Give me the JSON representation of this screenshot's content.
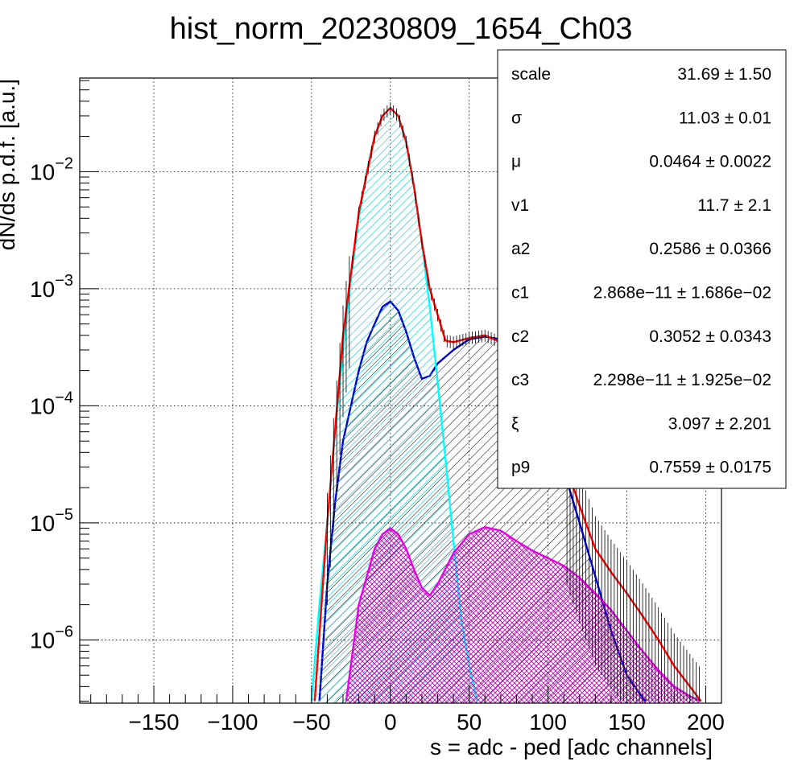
{
  "chart_data": {
    "type": "line",
    "title": "hist_norm_20230809_1654_Ch03",
    "xlabel": "s = adc - ped [adc channels]",
    "ylabel": "dN/ds p.d.f. [a.u.]",
    "xlim": [
      -197,
      210
    ],
    "ylim_log10": [
      -6.54,
      -1.2
    ],
    "yscale": "log",
    "grid": true,
    "x_ticks": [
      -150,
      -100,
      -50,
      0,
      50,
      100,
      150,
      200
    ],
    "x_tick_labels": [
      "−150",
      "−100",
      "−50",
      "0",
      "50",
      "100",
      "150",
      "200"
    ],
    "y_ticks": [
      {
        "value": 0.01,
        "base": "10",
        "exp": "−2"
      },
      {
        "value": 0.001,
        "base": "10",
        "exp": "−3"
      },
      {
        "value": 0.0001,
        "base": "10",
        "exp": "−4"
      },
      {
        "value": 1e-05,
        "base": "10",
        "exp": "−5"
      },
      {
        "value": 1e-06,
        "base": "10",
        "exp": "−6"
      }
    ],
    "series": [
      {
        "color": "#ff0000",
        "fill": "none",
        "x": [
          -48,
          -40,
          -30,
          -20,
          -10,
          -5,
          0,
          5,
          10,
          15,
          20,
          25,
          30,
          35,
          40,
          50,
          60,
          70,
          80,
          90,
          100,
          110,
          120,
          130,
          140,
          150,
          160,
          170,
          180,
          190,
          197
        ],
        "y": [
          3e-07,
          1e-05,
          0.0004,
          0.0045,
          0.02,
          0.03,
          0.035,
          0.03,
          0.018,
          0.0075,
          0.0025,
          0.001,
          0.0006,
          0.00036,
          0.00035,
          0.00038,
          0.0004,
          0.00035,
          0.00025,
          0.00015,
          7.5e-05,
          3.5e-05,
          1.4e-05,
          6e-06,
          3.8e-06,
          2.5e-06,
          1.6e-06,
          1e-06,
          6e-07,
          4e-07,
          3e-07
        ]
      },
      {
        "color": "#00ffff",
        "fill": "#00c8c8",
        "x": [
          -50,
          -45,
          -40,
          -35,
          -30,
          -25,
          -20,
          -15,
          -10,
          -5,
          0,
          5,
          10,
          15,
          20,
          25,
          30,
          35,
          40,
          45,
          50,
          53,
          55
        ],
        "y": [
          3e-07,
          2e-06,
          1e-05,
          6e-05,
          0.0003,
          0.0012,
          0.004,
          0.01,
          0.02,
          0.03,
          0.035,
          0.03,
          0.018,
          0.0075,
          0.0025,
          0.0007,
          0.00016,
          3.5e-05,
          7e-06,
          1.5e-06,
          6e-07,
          4e-07,
          3e-07
        ]
      },
      {
        "color": "#0000cc",
        "fill": "#000000",
        "x": [
          -45,
          -40,
          -35,
          -30,
          -25,
          -20,
          -15,
          -10,
          -5,
          0,
          5,
          10,
          15,
          20,
          25,
          30,
          40,
          50,
          60,
          70,
          80,
          90,
          100,
          110,
          120,
          130,
          140,
          150,
          155,
          160,
          162
        ],
        "y": [
          3e-07,
          3e-06,
          1.5e-05,
          5e-05,
          0.0001,
          0.0002,
          0.00035,
          0.0005,
          0.0007,
          0.00078,
          0.00065,
          0.00043,
          0.00026,
          0.00017,
          0.00018,
          0.00023,
          0.0003,
          0.00037,
          0.00039,
          0.00037,
          0.00028,
          0.00016,
          7e-05,
          2.8e-05,
          1e-05,
          3.5e-06,
          1.2e-06,
          5e-07,
          4e-07,
          3.2e-07,
          3e-07
        ]
      },
      {
        "color": "#e800e8",
        "fill": "#b000b0",
        "x": [
          -28,
          -20,
          -10,
          -5,
          0,
          5,
          10,
          15,
          20,
          25,
          30,
          40,
          50,
          60,
          70,
          80,
          90,
          100,
          110,
          120,
          130,
          140,
          150,
          160,
          170,
          180,
          190,
          197
        ],
        "y": [
          3e-07,
          2e-06,
          6e-06,
          8e-06,
          9e-06,
          8e-06,
          6e-06,
          4e-06,
          2.8e-06,
          2.4e-06,
          3e-06,
          5.5e-06,
          8e-06,
          9.2e-06,
          8.6e-06,
          7e-06,
          5.8e-06,
          5e-06,
          4.3e-06,
          3.4e-06,
          2.5e-06,
          1.8e-06,
          1.2e-06,
          8e-07,
          5.5e-07,
          4e-07,
          3.3e-07,
          3e-07
        ]
      }
    ]
  },
  "stats_box": {
    "rows": [
      {
        "name": "scale",
        "value": "31.69",
        "pm": "±",
        "err": "1.50"
      },
      {
        "name": "σ",
        "value": "11.03",
        "pm": "±",
        "err": "0.01"
      },
      {
        "name": "μ",
        "value": "0.0464",
        "pm": "±",
        "err": "0.0022"
      },
      {
        "name": "v1",
        "value": "11.7",
        "pm": "±",
        "err": "2.1"
      },
      {
        "name": "a2",
        "value": "0.2586",
        "pm": "±",
        "err": "0.0366"
      },
      {
        "name": "c1",
        "value": "2.868e−11",
        "pm": "±",
        "err": "1.686e−02"
      },
      {
        "name": "c2",
        "value": "0.3052",
        "pm": "±",
        "err": "0.0343"
      },
      {
        "name": "c3",
        "value": "2.298e−11",
        "pm": "±",
        "err": "1.925e−02"
      },
      {
        "name": "ξ",
        "value": "3.097",
        "pm": "±",
        "err": "2.201"
      },
      {
        "name": "p9",
        "value": "0.7559",
        "pm": "±",
        "err": "0.0175"
      }
    ]
  }
}
